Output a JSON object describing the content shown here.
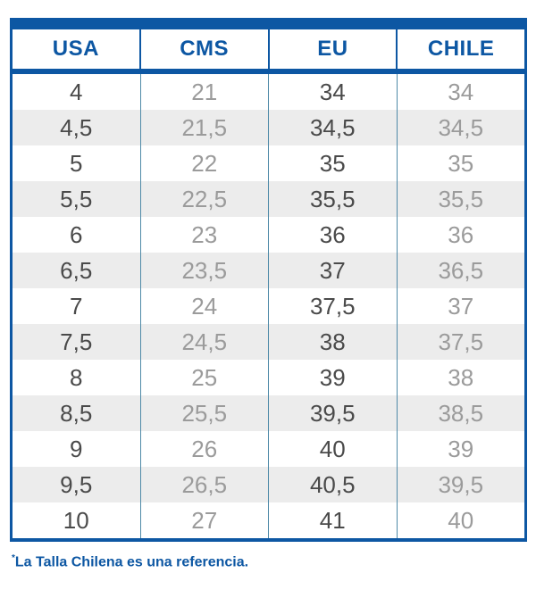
{
  "chart_data": {
    "type": "table",
    "columns": [
      "USA",
      "CMS",
      "EU",
      "CHILE"
    ],
    "rows": [
      [
        "4",
        "21",
        "34",
        "34"
      ],
      [
        "4,5",
        "21,5",
        "34,5",
        "34,5"
      ],
      [
        "5",
        "22",
        "35",
        "35"
      ],
      [
        "5,5",
        "22,5",
        "35,5",
        "35,5"
      ],
      [
        "6",
        "23",
        "36",
        "36"
      ],
      [
        "6,5",
        "23,5",
        "37",
        "36,5"
      ],
      [
        "7",
        "24",
        "37,5",
        "37"
      ],
      [
        "7,5",
        "24,5",
        "38",
        "37,5"
      ],
      [
        "8",
        "25",
        "39",
        "38"
      ],
      [
        "8,5",
        "25,5",
        "39,5",
        "38,5"
      ],
      [
        "9",
        "26",
        "40",
        "39"
      ],
      [
        "9,5",
        "26,5",
        "40,5",
        "39,5"
      ],
      [
        "10",
        "27",
        "41",
        "40"
      ]
    ],
    "title": "",
    "footnote": "*La Talla Chilena es una referencia.",
    "layout_hints": {
      "striped": true,
      "stripe_color": "#ececec",
      "header_text_color": "#0d57a3",
      "dark_value_columns": [
        "USA",
        "EU"
      ],
      "light_value_columns": [
        "CMS",
        "CHILE"
      ]
    }
  },
  "footnote": {
    "mark": "*",
    "text": "La Talla Chilena es una referencia."
  },
  "colors": {
    "accent_blue": "#0d57a3",
    "stripe_gray": "#ececec",
    "dark_text": "#4a4a4a",
    "light_text": "#9b9b9b",
    "cell_divider": "#4f8aa8"
  }
}
